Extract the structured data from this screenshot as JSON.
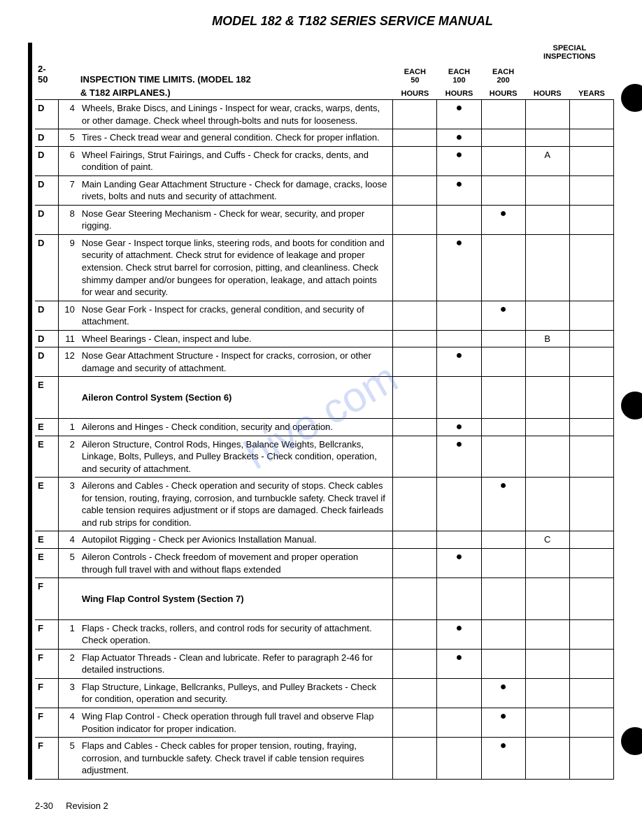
{
  "title": "MODEL 182 & T182 SERIES SERVICE MANUAL",
  "section_number": "2-50",
  "section_title_line1": "INSPECTION TIME LIMITS. (MODEL 182",
  "section_title_line2": "& T182 AIRPLANES.)",
  "columns": {
    "special_label": "SPECIAL",
    "inspections_label": "INSPECTIONS",
    "each50_top": "EACH",
    "each50_mid": "50",
    "each50_bot": "HOURS",
    "each100_top": "EACH",
    "each100_mid": "100",
    "each100_bot": "HOURS",
    "each200_top": "EACH",
    "each200_mid": "200",
    "each200_bot": "HOURS",
    "special_hours": "HOURS",
    "special_years": "YEARS"
  },
  "rows": [
    {
      "code": "D",
      "num": "4",
      "desc": "Wheels, Brake Discs, and Linings - Inspect for wear, cracks, warps, dents, or other damage. Check wheel through-bolts and nuts for looseness.",
      "c50": "",
      "c100": "●",
      "c200": "",
      "sh": "",
      "sy": ""
    },
    {
      "code": "D",
      "num": "5",
      "desc": "Tires - Check tread wear and general condition. Check for proper inflation.",
      "c50": "",
      "c100": "●",
      "c200": "",
      "sh": "",
      "sy": ""
    },
    {
      "code": "D",
      "num": "6",
      "desc": "Wheel Fairings, Strut Fairings, and Cuffs - Check for cracks, dents, and condition of paint.",
      "c50": "",
      "c100": "●",
      "c200": "",
      "sh": "A",
      "sy": ""
    },
    {
      "code": "D",
      "num": "7",
      "desc": "Main Landing Gear Attachment Structure - Check for damage, cracks, loose rivets, bolts and nuts and security of attachment.",
      "c50": "",
      "c100": "●",
      "c200": "",
      "sh": "",
      "sy": ""
    },
    {
      "code": "D",
      "num": "8",
      "desc": "Nose Gear Steering Mechanism - Check for wear, security, and proper rigging.",
      "c50": "",
      "c100": "",
      "c200": "●",
      "sh": "",
      "sy": ""
    },
    {
      "code": "D",
      "num": "9",
      "desc": "Nose Gear - Inspect torque links, steering rods, and boots for condition and security of attachment. Check strut for evidence of leakage and proper extension. Check strut barrel for corrosion, pitting, and cleanliness. Check shimmy damper and/or bungees for operation, leakage, and attach points for wear and security.",
      "c50": "",
      "c100": "●",
      "c200": "",
      "sh": "",
      "sy": ""
    },
    {
      "code": "D",
      "num": "10",
      "desc": "Nose Gear Fork - Inspect for cracks, general condition, and security of attachment.",
      "c50": "",
      "c100": "",
      "c200": "●",
      "sh": "",
      "sy": ""
    },
    {
      "code": "D",
      "num": "11",
      "desc": "Wheel Bearings - Clean, inspect and lube.",
      "c50": "",
      "c100": "",
      "c200": "",
      "sh": "B",
      "sy": ""
    },
    {
      "code": "D",
      "num": "12",
      "desc": "Nose Gear Attachment Structure - Inspect for cracks, corrosion, or other damage and security of attachment.",
      "c50": "",
      "c100": "●",
      "c200": "",
      "sh": "",
      "sy": ""
    },
    {
      "code": "E",
      "num": "",
      "desc": "Aileron Control System (Section 6)",
      "c50": "",
      "c100": "",
      "c200": "",
      "sh": "",
      "sy": "",
      "section": true
    },
    {
      "code": "E",
      "num": "1",
      "desc": "Ailerons and Hinges - Check condition, security and operation.",
      "c50": "",
      "c100": "●",
      "c200": "",
      "sh": "",
      "sy": ""
    },
    {
      "code": "E",
      "num": "2",
      "desc": "Aileron Structure, Control Rods, Hinges, Balance Weights, Bellcranks, Linkage, Bolts, Pulleys, and Pulley Brackets - Check condition, operation, and security of attachment.",
      "c50": "",
      "c100": "●",
      "c200": "",
      "sh": "",
      "sy": ""
    },
    {
      "code": "E",
      "num": "3",
      "desc": "Ailerons and Cables - Check operation and security of stops. Check cables for tension, routing, fraying, corrosion, and turnbuckle safety. Check travel if cable tension requires adjustment or if stops are damaged. Check fairleads and rub strips for condition.",
      "c50": "",
      "c100": "",
      "c200": "●",
      "sh": "",
      "sy": ""
    },
    {
      "code": "E",
      "num": "4",
      "desc": "Autopilot Rigging - Check per Avionics Installation Manual.",
      "c50": "",
      "c100": "",
      "c200": "",
      "sh": "C",
      "sy": ""
    },
    {
      "code": "E",
      "num": "5",
      "desc": "Aileron Controls - Check freedom of movement and proper operation through full travel with and without flaps extended",
      "c50": "",
      "c100": "●",
      "c200": "",
      "sh": "",
      "sy": ""
    },
    {
      "code": "F",
      "num": "",
      "desc": "Wing Flap Control System (Section 7)",
      "c50": "",
      "c100": "",
      "c200": "",
      "sh": "",
      "sy": "",
      "section": true
    },
    {
      "code": "F",
      "num": "1",
      "desc": "Flaps - Check tracks, rollers, and control rods for security of attachment. Check operation.",
      "c50": "",
      "c100": "●",
      "c200": "",
      "sh": "",
      "sy": ""
    },
    {
      "code": "F",
      "num": "2",
      "desc": "Flap Actuator Threads - Clean and lubricate. Refer to paragraph 2-46 for detailed instructions.",
      "c50": "",
      "c100": "●",
      "c200": "",
      "sh": "",
      "sy": ""
    },
    {
      "code": "F",
      "num": "3",
      "desc": "Flap Structure, Linkage, Bellcranks, Pulleys, and Pulley Brackets - Check for condition, operation and security.",
      "c50": "",
      "c100": "",
      "c200": "●",
      "sh": "",
      "sy": ""
    },
    {
      "code": "F",
      "num": "4",
      "desc": "Wing Flap Control - Check operation through full travel and observe Flap Position indicator for proper indication.",
      "c50": "",
      "c100": "",
      "c200": "●",
      "sh": "",
      "sy": ""
    },
    {
      "code": "F",
      "num": "5",
      "desc": "Flaps and Cables - Check cables for proper tension, routing, fraying, corrosion, and turnbuckle safety. Check travel if cable tension requires adjustment.",
      "c50": "",
      "c100": "",
      "c200": "●",
      "sh": "",
      "sy": ""
    }
  ],
  "footer_page": "2-30",
  "footer_rev": "Revision 2",
  "watermark": "hive.com"
}
